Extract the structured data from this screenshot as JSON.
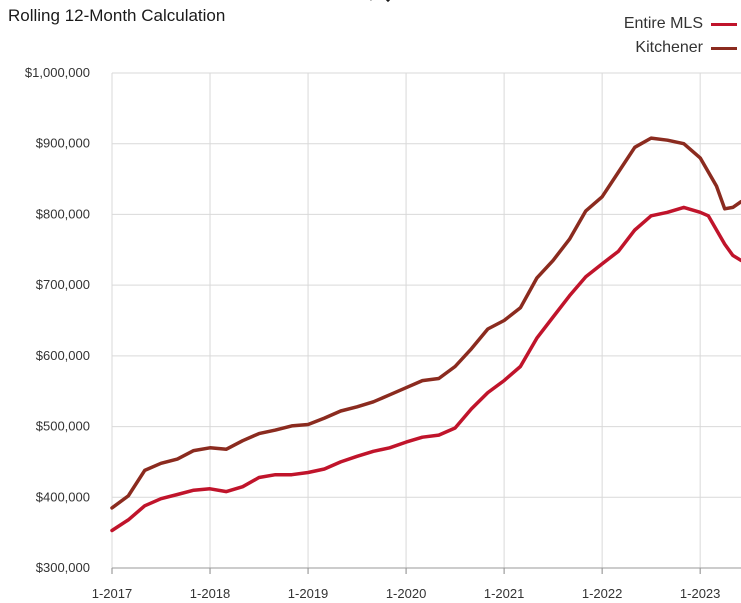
{
  "chart_data": {
    "type": "line",
    "title": "",
    "subtitle": "Rolling 12-Month Calculation",
    "xlabel": "",
    "ylabel": "",
    "ylim": [
      300000,
      1000000
    ],
    "y_ticks": [
      "$300,000",
      "$400,000",
      "$500,000",
      "$600,000",
      "$700,000",
      "$800,000",
      "$900,000",
      "$1,000,000"
    ],
    "y_tick_values": [
      300000,
      400000,
      500000,
      600000,
      700000,
      800000,
      900000,
      1000000
    ],
    "x_ticks": [
      "1-2017",
      "1-2018",
      "1-2019",
      "1-2020",
      "1-2021",
      "1-2022",
      "1-2023"
    ],
    "x_tick_months": [
      0,
      12,
      24,
      36,
      48,
      60,
      72
    ],
    "x_range_months": [
      0,
      77
    ],
    "grid": true,
    "legend_position": "top-right",
    "series": [
      {
        "name": "Entire MLS",
        "color": "#c0142b",
        "points": [
          [
            0,
            353000
          ],
          [
            2,
            368000
          ],
          [
            4,
            388000
          ],
          [
            6,
            398000
          ],
          [
            8,
            404000
          ],
          [
            10,
            410000
          ],
          [
            12,
            412000
          ],
          [
            14,
            408000
          ],
          [
            16,
            415000
          ],
          [
            18,
            428000
          ],
          [
            20,
            432000
          ],
          [
            22,
            432000
          ],
          [
            24,
            435000
          ],
          [
            26,
            440000
          ],
          [
            28,
            450000
          ],
          [
            30,
            458000
          ],
          [
            32,
            465000
          ],
          [
            34,
            470000
          ],
          [
            36,
            478000
          ],
          [
            38,
            485000
          ],
          [
            40,
            488000
          ],
          [
            42,
            498000
          ],
          [
            44,
            525000
          ],
          [
            46,
            548000
          ],
          [
            48,
            565000
          ],
          [
            50,
            585000
          ],
          [
            52,
            625000
          ],
          [
            54,
            655000
          ],
          [
            56,
            685000
          ],
          [
            58,
            712000
          ],
          [
            60,
            730000
          ],
          [
            62,
            748000
          ],
          [
            64,
            778000
          ],
          [
            66,
            798000
          ],
          [
            68,
            803000
          ],
          [
            70,
            810000
          ],
          [
            72,
            803000
          ],
          [
            73,
            798000
          ],
          [
            75,
            758000
          ],
          [
            76,
            742000
          ],
          [
            77,
            735000
          ]
        ]
      },
      {
        "name": "Kitchener",
        "color": "#8b2b1f",
        "points": [
          [
            0,
            385000
          ],
          [
            2,
            402000
          ],
          [
            4,
            438000
          ],
          [
            6,
            448000
          ],
          [
            8,
            454000
          ],
          [
            10,
            466000
          ],
          [
            12,
            470000
          ],
          [
            14,
            468000
          ],
          [
            16,
            480000
          ],
          [
            18,
            490000
          ],
          [
            20,
            495000
          ],
          [
            22,
            501000
          ],
          [
            24,
            503000
          ],
          [
            26,
            512000
          ],
          [
            28,
            522000
          ],
          [
            30,
            528000
          ],
          [
            32,
            535000
          ],
          [
            34,
            545000
          ],
          [
            36,
            555000
          ],
          [
            38,
            565000
          ],
          [
            40,
            568000
          ],
          [
            42,
            585000
          ],
          [
            44,
            610000
          ],
          [
            46,
            638000
          ],
          [
            48,
            650000
          ],
          [
            50,
            668000
          ],
          [
            52,
            710000
          ],
          [
            54,
            735000
          ],
          [
            56,
            765000
          ],
          [
            58,
            805000
          ],
          [
            60,
            825000
          ],
          [
            62,
            860000
          ],
          [
            64,
            895000
          ],
          [
            66,
            908000
          ],
          [
            68,
            905000
          ],
          [
            70,
            900000
          ],
          [
            72,
            880000
          ],
          [
            74,
            840000
          ],
          [
            75,
            808000
          ],
          [
            76,
            810000
          ],
          [
            77,
            818000
          ]
        ]
      }
    ]
  }
}
